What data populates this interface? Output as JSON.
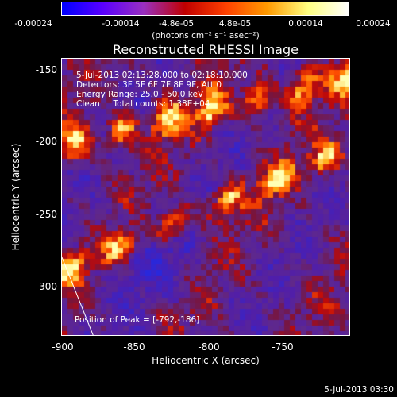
{
  "colorbar": {
    "tick_labels": [
      "-0.00024",
      "-0.00014",
      "-4.8e-05",
      "4.8e-05",
      "0.00014",
      "0.00024"
    ],
    "unit": "(photons cm⁻² s⁻¹ asec⁻²)",
    "colors": [
      "#0000ff",
      "#5a00ff",
      "#9a30c0",
      "#c00000",
      "#ff4000",
      "#ff9a00",
      "#ffff80",
      "#ffffff"
    ]
  },
  "title": "Reconstructed RHESSI Image",
  "info": {
    "line1": "5-Jul-2013 02:13:28.000 to 02:18:10.000",
    "line2": "Detectors: 3F 5F 6F 7F 8F 9F, Att 0",
    "line3": "Energy Range: 25.0 - 50.0 keV",
    "line4": "Clean     Total counts: 1.38E+04"
  },
  "peak": "Position of Peak = [-792,-186]",
  "axes": {
    "xlabel": "Heliocentric X (arcsec)",
    "ylabel": "Heliocentric Y (arcsec)",
    "xrange": [
      -900,
      -712
    ],
    "yrange": [
      -150,
      -335
    ],
    "xticks": [
      "-900",
      "-850",
      "-800",
      "-750"
    ],
    "yticks": [
      "-150",
      "-200",
      "-250",
      "-300"
    ]
  },
  "timestamp": "5-Jul-2013 03:30"
}
